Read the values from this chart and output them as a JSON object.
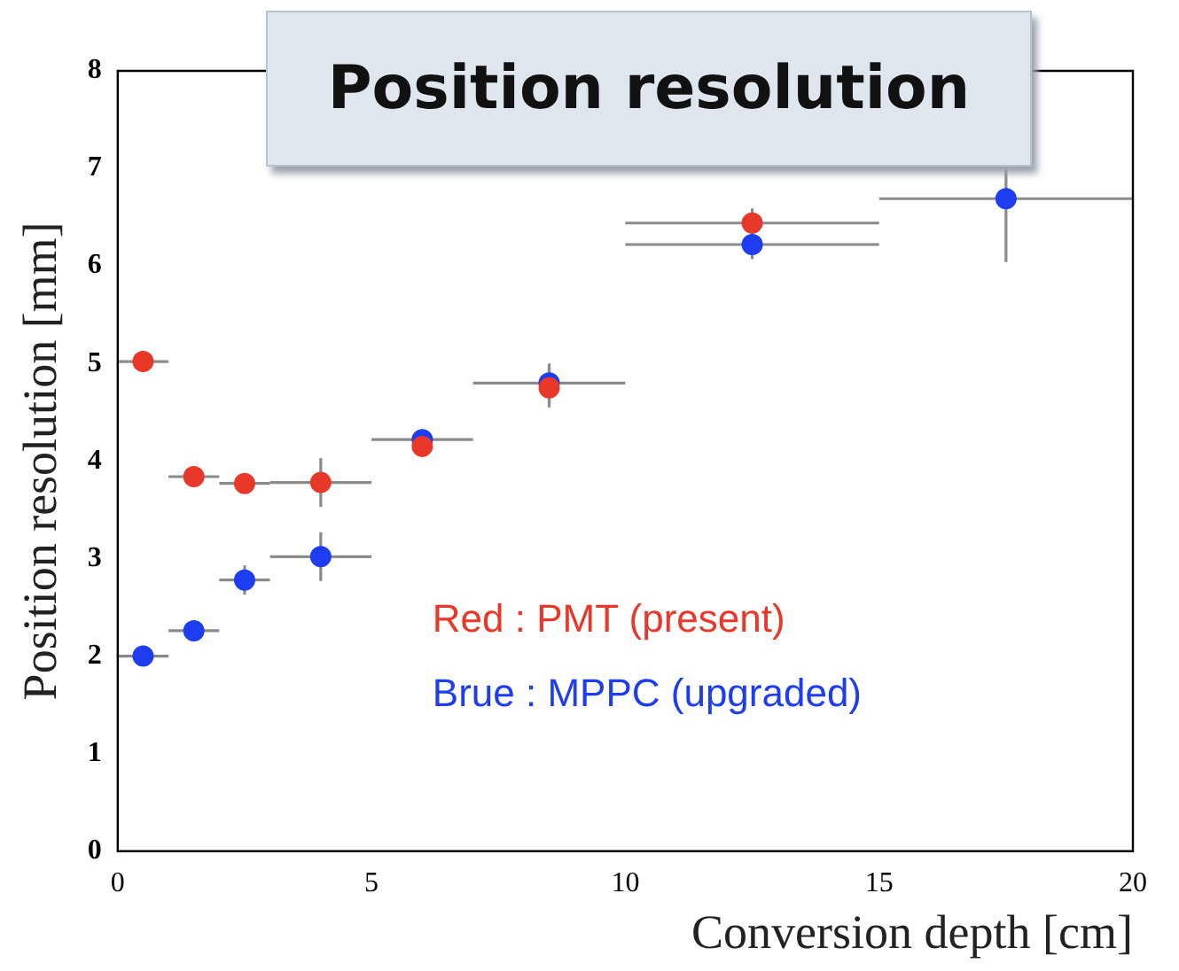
{
  "chart_data": {
    "type": "scatter",
    "title": "Position resolution",
    "xlabel": "Conversion depth [cm]",
    "ylabel": "Position resolution [mm]",
    "xlim": [
      0,
      20
    ],
    "xticks": [
      0,
      5,
      10,
      15,
      20
    ],
    "ylim": [
      0,
      8
    ],
    "yticks": [
      0,
      1,
      2,
      3,
      4,
      5,
      6,
      7,
      8
    ],
    "grid": false,
    "legend": "bottom right",
    "marker": "circle",
    "series": [
      {
        "name": "Red : PMT (present)",
        "color": "#e8382a",
        "x": [
          0.5,
          1.5,
          2.5,
          4,
          6,
          8.5,
          12.5
        ],
        "values": [
          5.02,
          3.84,
          3.77,
          3.78,
          4.15,
          4.75,
          6.44
        ],
        "xerrors": [
          0.5,
          0.5,
          0.5,
          1,
          null,
          null,
          2.5
        ],
        "errors": [
          null,
          null,
          null,
          0.25,
          null,
          0.2,
          0.15
        ]
      },
      {
        "name": "Brue : MPPC (upgraded)",
        "color": "#1e3cf0",
        "x": [
          0.5,
          1.5,
          2.5,
          4,
          6,
          8.5,
          12.5,
          17.5
        ],
        "values": [
          2.0,
          2.26,
          2.78,
          3.02,
          4.22,
          4.8,
          6.22,
          6.69
        ],
        "xerrors": [
          0.5,
          0.5,
          0.5,
          1,
          1,
          1.5,
          2.5,
          2.5
        ],
        "errors": [
          null,
          null,
          0.15,
          0.25,
          null,
          0.2,
          0.15,
          0.65
        ]
      }
    ]
  }
}
